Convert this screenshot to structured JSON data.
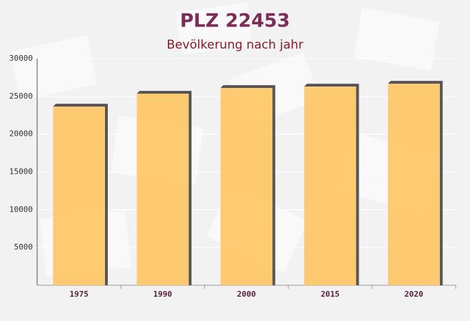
{
  "chart_data": {
    "type": "bar",
    "title": "PLZ 22453",
    "subtitle": "Bevölkerung nach jahr",
    "categories": [
      "1975",
      "1990",
      "2000",
      "2015",
      "2020"
    ],
    "values": [
      23650,
      25350,
      26110,
      26300,
      26680
    ],
    "color": "#ffc766",
    "ylim": [
      0,
      30000
    ],
    "yticks": [
      5000,
      10000,
      15000,
      20000,
      25000,
      30000
    ],
    "grid": true
  }
}
